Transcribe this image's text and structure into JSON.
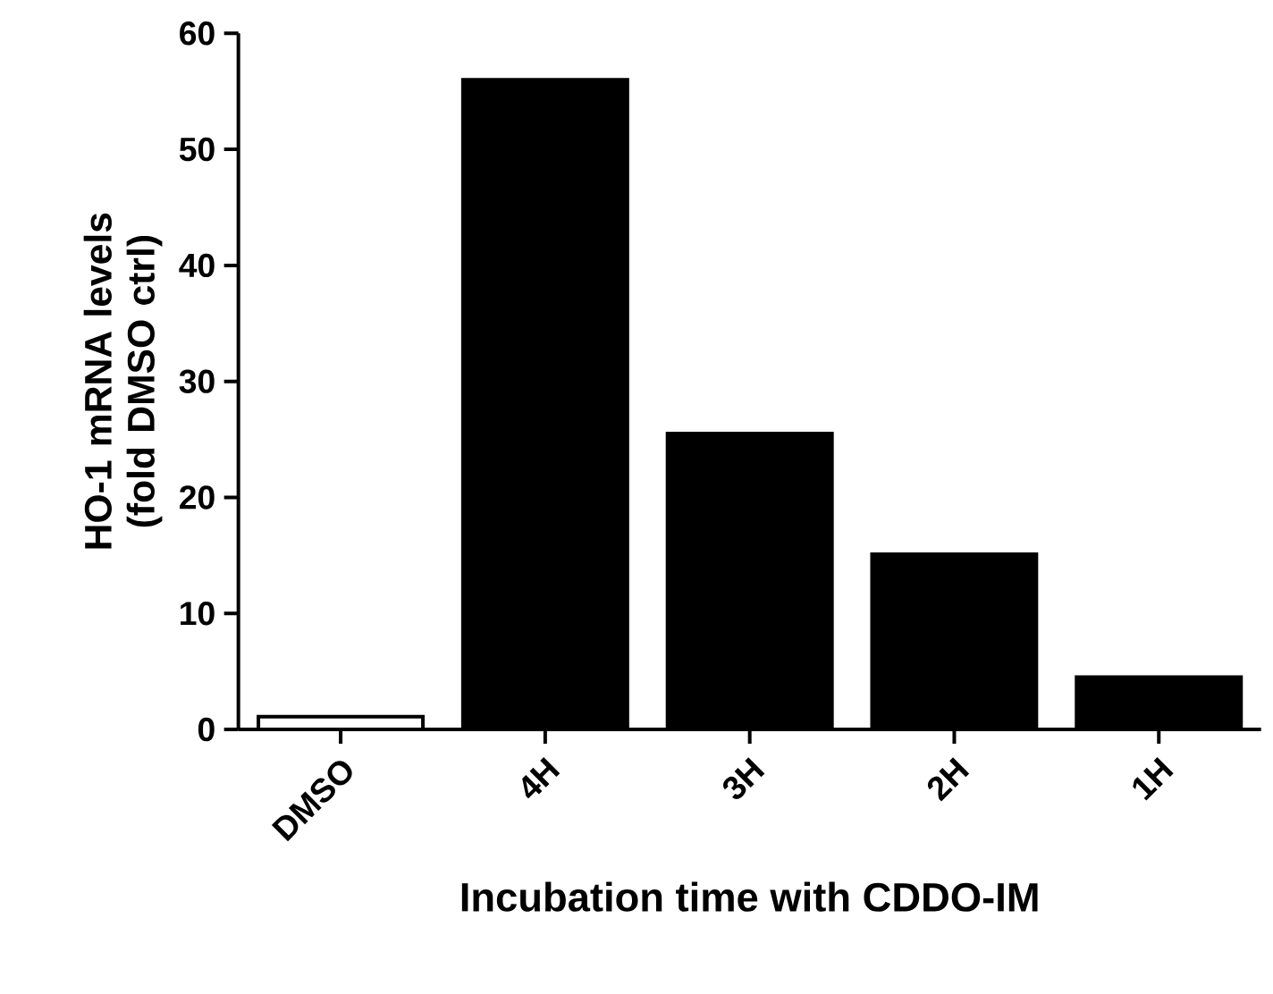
{
  "chart_data": {
    "type": "bar",
    "xlabel": "Incubation time with CDDO-IM",
    "ylabel": "HO-1 mRNA levels (fold DMSO ctrl)",
    "categories": [
      "DMSO",
      "4H",
      "3H",
      "2H",
      "1H"
    ],
    "values": [
      1.1,
      56,
      25.5,
      15.1,
      4.5
    ],
    "colors": [
      "#ffffff",
      "#000000",
      "#000000",
      "#000000",
      "#000000"
    ],
    "ylim": [
      0,
      60
    ],
    "yticks": [
      0,
      10,
      20,
      30,
      40,
      50,
      60
    ],
    "grid": false
  }
}
